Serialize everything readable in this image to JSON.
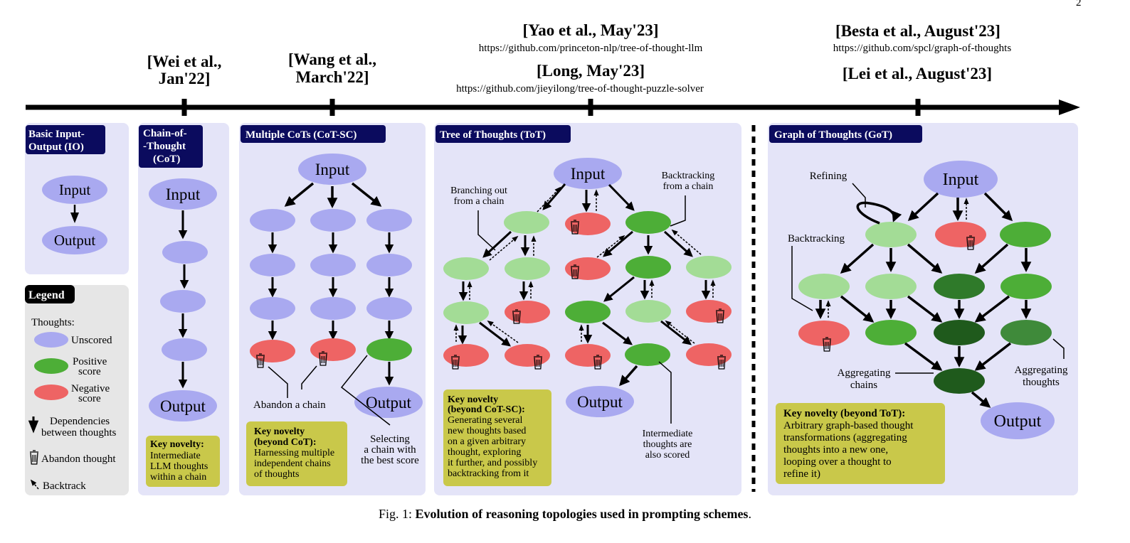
{
  "page_number": "2",
  "timeline": {
    "wei": [
      "[Wei et al.,",
      "Jan'22]"
    ],
    "wang": [
      "[Wang et al.,",
      "March'22]"
    ],
    "yao": "[Yao et al., May'23]",
    "yao_url": "https://github.com/princeton-nlp/tree-of-thought-llm",
    "long": "[Long, May'23]",
    "long_url": "https://github.com/jieyilong/tree-of-thought-puzzle-solver",
    "besta": "[Besta et al., August'23]",
    "besta_url": "https://github.com/spcl/graph-of-thoughts",
    "lei": "[Lei et al., August'23]"
  },
  "panels": {
    "io": {
      "title": [
        "Basic Input-",
        "Output (IO)"
      ],
      "input": "Input",
      "output": "Output"
    },
    "cot": {
      "title": [
        "Chain-of-",
        "-Thought",
        "(CoT)"
      ],
      "input": "Input",
      "output": "Output",
      "novelty_title": "Key novelty:",
      "novelty": [
        "Intermediate",
        "LLM thoughts",
        "within a chain"
      ]
    },
    "cotsc": {
      "title": "Multiple CoTs (CoT-SC)",
      "input": "Input",
      "output": "Output",
      "abandon": "Abandon a chain",
      "selecting": [
        "Selecting",
        "a chain with",
        "the best score"
      ],
      "novelty_title": [
        "Key novelty",
        "(beyond CoT):"
      ],
      "novelty": [
        "Harnessing multiple",
        "independent chains",
        "of thoughts"
      ]
    },
    "tot": {
      "title": "Tree of Thoughts (ToT)",
      "input": "Input",
      "output": "Output",
      "branching": [
        "Branching out",
        "from a chain"
      ],
      "backtracking": [
        "Backtracking",
        "from a chain"
      ],
      "intermediate": [
        "Intermediate",
        "thoughts are",
        "also scored"
      ],
      "novelty_title": [
        "Key novelty",
        "(beyond CoT-SC):"
      ],
      "novelty": [
        "Generating several",
        "new thoughts based",
        "on a given arbitrary",
        "thought, exploring",
        "it further, and possibly",
        "backtracking from it"
      ]
    },
    "got": {
      "title": "Graph of Thoughts (GoT)",
      "input": "Input",
      "output": "Output",
      "refining": "Refining",
      "backtracking": "Backtracking",
      "agg_chains": [
        "Aggregating",
        "chains"
      ],
      "agg_thoughts": [
        "Aggregating",
        "thoughts"
      ],
      "novelty_title": "Key novelty (beyond ToT):",
      "novelty": [
        "Arbitrary graph-based thought",
        "transformations (aggregating",
        "thoughts into a new one,",
        "looping over a thought to",
        "refine it)"
      ]
    }
  },
  "legend": {
    "title": "Legend",
    "thoughts": "Thoughts:",
    "unscored": "Unscored",
    "positive": [
      "Positive",
      "score"
    ],
    "negative": [
      "Negative",
      "score"
    ],
    "dependencies": [
      "Dependencies",
      "between thoughts"
    ],
    "abandon": "Abandon thought",
    "backtrack": "Backtrack"
  },
  "caption": {
    "prefix": "Fig. 1: ",
    "bold": "Evolution of reasoning topologies used in prompting schemes",
    "suffix": "."
  },
  "colors": {
    "panel": "#e4e4f8",
    "legend_bg": "#e6e6e6",
    "title_bg": "#0b0b5e",
    "unscored": "#a9a9f0",
    "light_green": "#a3dc96",
    "green": "#4dae37",
    "dark_green": "#2f7a2a",
    "darkest_green": "#1f5a1c",
    "red": "#ee6464",
    "novelty_bg": "#c9c84a"
  }
}
